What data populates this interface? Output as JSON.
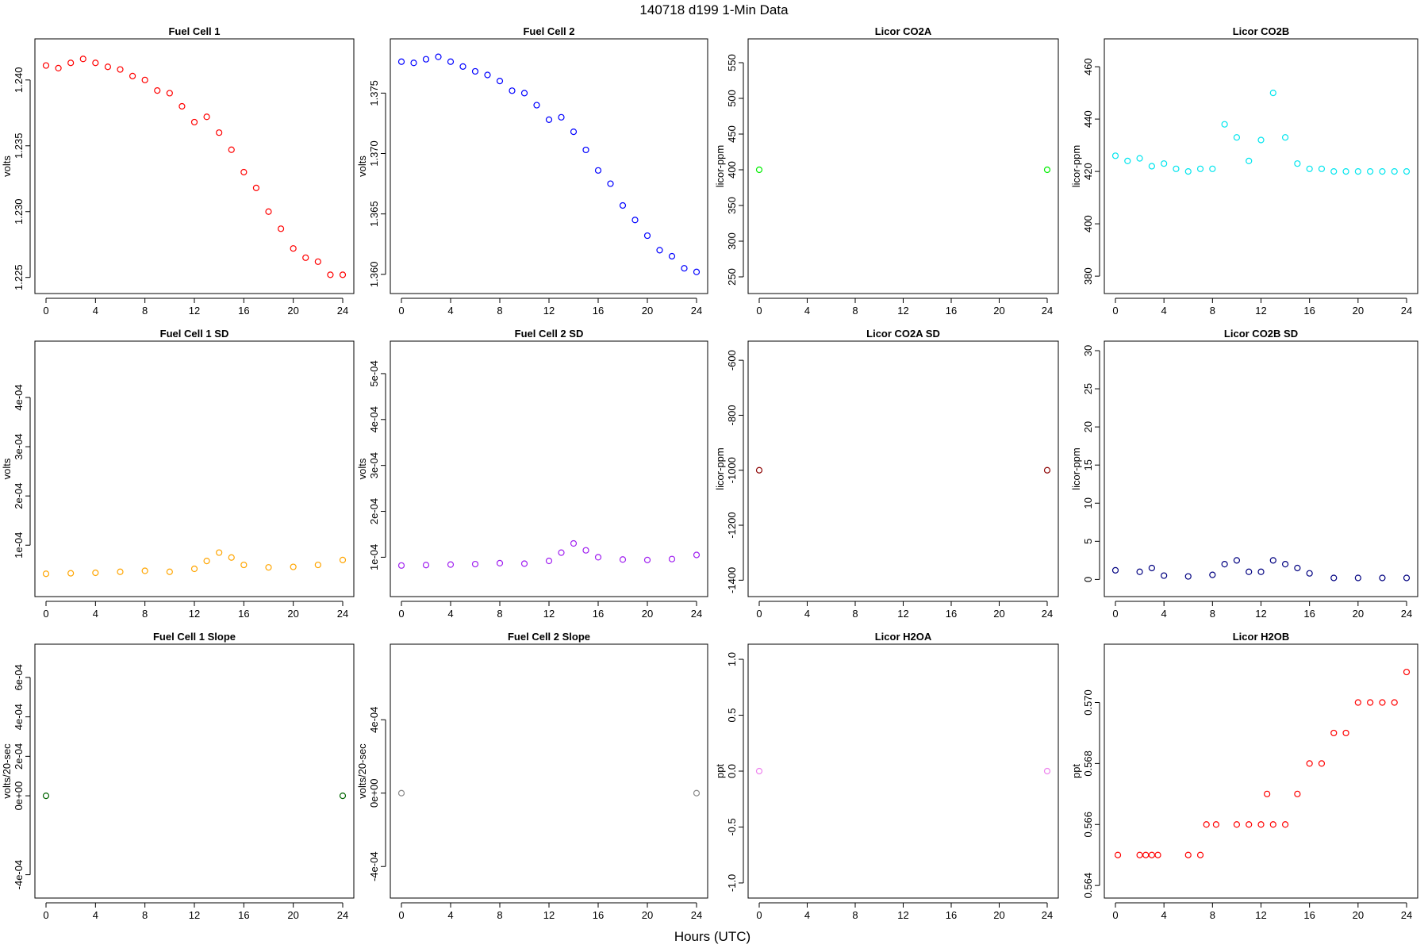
{
  "figure": {
    "title": "140718   d199   1-Min Data",
    "xlabel": "Hours (UTC)"
  },
  "chart_data": [
    {
      "id": "fc1",
      "type": "scatter",
      "title": "Fuel Cell 1",
      "ylabel": "volts",
      "color": "#ff0000",
      "xlim": [
        0,
        24
      ],
      "ylim": [
        1.2245,
        1.2424
      ],
      "xticks": [
        0,
        4,
        8,
        12,
        16,
        20,
        24
      ],
      "yticks": [
        {
          "v": 1.225,
          "t": "1.225"
        },
        {
          "v": 1.23,
          "t": "1.230"
        },
        {
          "v": 1.235,
          "t": "1.235"
        },
        {
          "v": 1.24,
          "t": "1.240"
        }
      ],
      "x": [
        0,
        1,
        2,
        3,
        4,
        5,
        6,
        7,
        8,
        9,
        10,
        11,
        12,
        13,
        14,
        15,
        16,
        17,
        18,
        19,
        20,
        21,
        22,
        23,
        24
      ],
      "y": [
        1.2411,
        1.2409,
        1.2413,
        1.2416,
        1.2413,
        1.241,
        1.2408,
        1.2403,
        1.24,
        1.2392,
        1.239,
        1.238,
        1.2368,
        1.2372,
        1.236,
        1.2347,
        1.233,
        1.2318,
        1.23,
        1.2287,
        1.2272,
        1.2265,
        1.2262,
        1.2252,
        1.2252
      ]
    },
    {
      "id": "fc2",
      "type": "scatter",
      "title": "Fuel Cell 2",
      "ylabel": "volts",
      "color": "#0000ff",
      "xlim": [
        0,
        24
      ],
      "ylim": [
        1.3592,
        1.3787
      ],
      "xticks": [
        0,
        4,
        8,
        12,
        16,
        20,
        24
      ],
      "yticks": [
        {
          "v": 1.36,
          "t": "1.360"
        },
        {
          "v": 1.365,
          "t": "1.365"
        },
        {
          "v": 1.37,
          "t": "1.370"
        },
        {
          "v": 1.375,
          "t": "1.375"
        }
      ],
      "x": [
        0,
        1,
        2,
        3,
        4,
        5,
        6,
        7,
        8,
        9,
        10,
        11,
        12,
        13,
        14,
        15,
        16,
        17,
        18,
        19,
        20,
        21,
        22,
        23,
        24
      ],
      "y": [
        1.3776,
        1.3775,
        1.3778,
        1.378,
        1.3776,
        1.3772,
        1.3768,
        1.3765,
        1.376,
        1.3752,
        1.375,
        1.374,
        1.3728,
        1.373,
        1.3718,
        1.3703,
        1.3686,
        1.3675,
        1.3657,
        1.3645,
        1.3632,
        1.362,
        1.3615,
        1.3605,
        1.3602
      ]
    },
    {
      "id": "co2a",
      "type": "scatter",
      "title": "Licor CO2A",
      "ylabel": "licor-ppm",
      "color": "#00ee00",
      "xlim": [
        0,
        24
      ],
      "ylim": [
        240,
        570
      ],
      "xticks": [
        0,
        4,
        8,
        12,
        16,
        20,
        24
      ],
      "yticks": [
        {
          "v": 250,
          "t": "250"
        },
        {
          "v": 300,
          "t": "300"
        },
        {
          "v": 350,
          "t": "350"
        },
        {
          "v": 400,
          "t": "400"
        },
        {
          "v": 450,
          "t": "450"
        },
        {
          "v": 500,
          "t": "500"
        },
        {
          "v": 550,
          "t": "550"
        }
      ],
      "x": [
        0,
        24
      ],
      "y": [
        400,
        400
      ]
    },
    {
      "id": "co2b",
      "type": "scatter",
      "title": "Licor CO2B",
      "ylabel": "licor-ppm",
      "color": "#00e5ee",
      "xlim": [
        0,
        24
      ],
      "ylim": [
        377,
        467
      ],
      "xticks": [
        0,
        4,
        8,
        12,
        16,
        20,
        24
      ],
      "yticks": [
        {
          "v": 380,
          "t": "380"
        },
        {
          "v": 400,
          "t": "400"
        },
        {
          "v": 420,
          "t": "420"
        },
        {
          "v": 440,
          "t": "440"
        },
        {
          "v": 460,
          "t": "460"
        }
      ],
      "x": [
        0,
        1,
        2,
        3,
        4,
        5,
        6,
        7,
        8,
        9,
        10,
        11,
        12,
        13,
        14,
        15,
        16,
        17,
        18,
        19,
        20,
        21,
        22,
        23,
        24
      ],
      "y": [
        426,
        424,
        425,
        422,
        423,
        421,
        420,
        421,
        421,
        438,
        433,
        424,
        432,
        450,
        433,
        423,
        421,
        421,
        420,
        420,
        420,
        420,
        420,
        420,
        420
      ]
    },
    {
      "id": "fc1sd",
      "type": "scatter",
      "title": "Fuel Cell 1 SD",
      "ylabel": "volts",
      "color": "#ffa500",
      "xlim": [
        0,
        24
      ],
      "ylim": [
        1.5e-05,
        0.000495
      ],
      "xticks": [
        0,
        4,
        8,
        12,
        16,
        20,
        24
      ],
      "yticks": [
        {
          "v": 0.0001,
          "t": "1e-04"
        },
        {
          "v": 0.0002,
          "t": "2e-04"
        },
        {
          "v": 0.0003,
          "t": "3e-04"
        },
        {
          "v": 0.0004,
          "t": "4e-04"
        }
      ],
      "x": [
        0,
        2,
        4,
        6,
        8,
        10,
        12,
        13,
        14,
        15,
        16,
        18,
        20,
        22,
        24
      ],
      "y": [
        4.2e-05,
        4.3e-05,
        4.4e-05,
        4.6e-05,
        4.8e-05,
        4.6e-05,
        5.2e-05,
        6.8e-05,
        8.5e-05,
        7.5e-05,
        6e-05,
        5.5e-05,
        5.6e-05,
        6e-05,
        7e-05
      ]
    },
    {
      "id": "fc2sd",
      "type": "scatter",
      "title": "Fuel Cell 2 SD",
      "ylabel": "volts",
      "color": "#a020f0",
      "xlim": [
        0,
        24
      ],
      "ylim": [
        3.5e-05,
        0.00055
      ],
      "xticks": [
        0,
        4,
        8,
        12,
        16,
        20,
        24
      ],
      "yticks": [
        {
          "v": 0.0001,
          "t": "1e-04"
        },
        {
          "v": 0.0002,
          "t": "2e-04"
        },
        {
          "v": 0.0003,
          "t": "3e-04"
        },
        {
          "v": 0.0004,
          "t": "4e-04"
        },
        {
          "v": 0.0005,
          "t": "5e-04"
        }
      ],
      "x": [
        0,
        2,
        4,
        6,
        8,
        10,
        12,
        13,
        14,
        15,
        16,
        18,
        20,
        22,
        24
      ],
      "y": [
        8.2e-05,
        8.3e-05,
        8.4e-05,
        8.5e-05,
        8.7e-05,
        8.6e-05,
        9.2e-05,
        0.00011,
        0.00013,
        0.000115,
        0.0001,
        9.5e-05,
        9.4e-05,
        9.6e-05,
        0.000105
      ]
    },
    {
      "id": "co2asd",
      "type": "scatter",
      "title": "Licor CO2A SD",
      "ylabel": "licor-ppm",
      "color": "#8b0000",
      "xlim": [
        0,
        24
      ],
      "ylim": [
        -1425,
        -565
      ],
      "xticks": [
        0,
        4,
        8,
        12,
        16,
        20,
        24
      ],
      "yticks": [
        {
          "v": -1400,
          "t": "-1400"
        },
        {
          "v": -1200,
          "t": "-1200"
        },
        {
          "v": -1000,
          "t": "-1000"
        },
        {
          "v": -800,
          "t": "-800"
        },
        {
          "v": -600,
          "t": "-600"
        }
      ],
      "x": [
        0,
        24
      ],
      "y": [
        -1000,
        -1000
      ]
    },
    {
      "id": "co2bsd",
      "type": "scatter",
      "title": "Licor CO2B SD",
      "ylabel": "licor-ppm",
      "color": "#000080",
      "xlim": [
        0,
        24
      ],
      "ylim": [
        -1,
        30
      ],
      "xticks": [
        0,
        4,
        8,
        12,
        16,
        20,
        24
      ],
      "yticks": [
        {
          "v": 0,
          "t": "0"
        },
        {
          "v": 5,
          "t": "5"
        },
        {
          "v": 10,
          "t": "10"
        },
        {
          "v": 15,
          "t": "15"
        },
        {
          "v": 20,
          "t": "20"
        },
        {
          "v": 25,
          "t": "25"
        },
        {
          "v": 30,
          "t": "30"
        }
      ],
      "x": [
        0,
        2,
        3,
        4,
        6,
        8,
        9,
        10,
        11,
        12,
        13,
        14,
        15,
        16,
        18,
        20,
        22,
        24
      ],
      "y": [
        1.2,
        1.0,
        1.5,
        0.5,
        0.4,
        0.6,
        2.0,
        2.5,
        1.0,
        1.0,
        2.5,
        2.0,
        1.5,
        0.8,
        0.2,
        0.2,
        0.2,
        0.2
      ]
    },
    {
      "id": "fc1slope",
      "type": "scatter",
      "title": "Fuel Cell 1 Slope",
      "ylabel": "volts/20-sec",
      "color": "#006400",
      "xlim": [
        0,
        24
      ],
      "ylim": [
        -0.00047,
        0.00072
      ],
      "xticks": [
        0,
        4,
        8,
        12,
        16,
        20,
        24
      ],
      "yticks": [
        {
          "v": -0.0004,
          "t": "-4e-04"
        },
        {
          "v": 0,
          "t": "0e+00"
        },
        {
          "v": 0.0002,
          "t": "2e-04"
        },
        {
          "v": 0.0004,
          "t": "4e-04"
        },
        {
          "v": 0.0006,
          "t": "6e-04"
        }
      ],
      "x": [
        0,
        24
      ],
      "y": [
        0,
        0
      ]
    },
    {
      "id": "fc2slope",
      "type": "scatter",
      "title": "Fuel Cell 2 Slope",
      "ylabel": "volts/20-sec",
      "color": "#888888",
      "xlim": [
        0,
        24
      ],
      "ylim": [
        -0.00052,
        0.00076
      ],
      "xticks": [
        0,
        4,
        8,
        12,
        16,
        20,
        24
      ],
      "yticks": [
        {
          "v": -0.0004,
          "t": "-4e-04"
        },
        {
          "v": 0,
          "t": "0e+00"
        },
        {
          "v": 0.0004,
          "t": "4e-04"
        }
      ],
      "x": [
        0,
        24
      ],
      "y": [
        0,
        0
      ]
    },
    {
      "id": "h2oa",
      "type": "scatter",
      "title": "Licor H2OA",
      "ylabel": "ppt",
      "color": "#ee82ee",
      "xlim": [
        0,
        24
      ],
      "ylim": [
        -1.05,
        1.05
      ],
      "xticks": [
        0,
        4,
        8,
        12,
        16,
        20,
        24
      ],
      "yticks": [
        {
          "v": -1.0,
          "t": "-1.0"
        },
        {
          "v": -0.5,
          "t": "-0.5"
        },
        {
          "v": 0.0,
          "t": "0.0"
        },
        {
          "v": 0.5,
          "t": "0.5"
        },
        {
          "v": 1.0,
          "t": "1.0"
        }
      ],
      "x": [
        0,
        24
      ],
      "y": [
        0,
        0
      ]
    },
    {
      "id": "h2ob",
      "type": "scatter",
      "title": "Licor H2OB",
      "ylabel": "ppt",
      "color": "#ff0000",
      "xlim": [
        0,
        24
      ],
      "ylim": [
        0.5639,
        0.5716
      ],
      "xticks": [
        0,
        4,
        8,
        12,
        16,
        20,
        24
      ],
      "yticks": [
        {
          "v": 0.564,
          "t": "0.564"
        },
        {
          "v": 0.566,
          "t": "0.566"
        },
        {
          "v": 0.568,
          "t": "0.568"
        },
        {
          "v": 0.57,
          "t": "0.570"
        }
      ],
      "x": [
        0.2,
        2.0,
        2.5,
        3.0,
        3.5,
        6.0,
        7.0,
        7.5,
        8.3,
        10.0,
        11.0,
        12.0,
        12.5,
        13.0,
        14.0,
        15.0,
        16.0,
        17.0,
        18.0,
        19.0,
        20.0,
        21.0,
        22.0,
        23.0,
        24.0
      ],
      "y": [
        0.565,
        0.565,
        0.565,
        0.565,
        0.565,
        0.565,
        0.565,
        0.566,
        0.566,
        0.566,
        0.566,
        0.566,
        0.567,
        0.566,
        0.566,
        0.567,
        0.568,
        0.568,
        0.569,
        0.569,
        0.57,
        0.57,
        0.57,
        0.57,
        0.571
      ]
    }
  ]
}
